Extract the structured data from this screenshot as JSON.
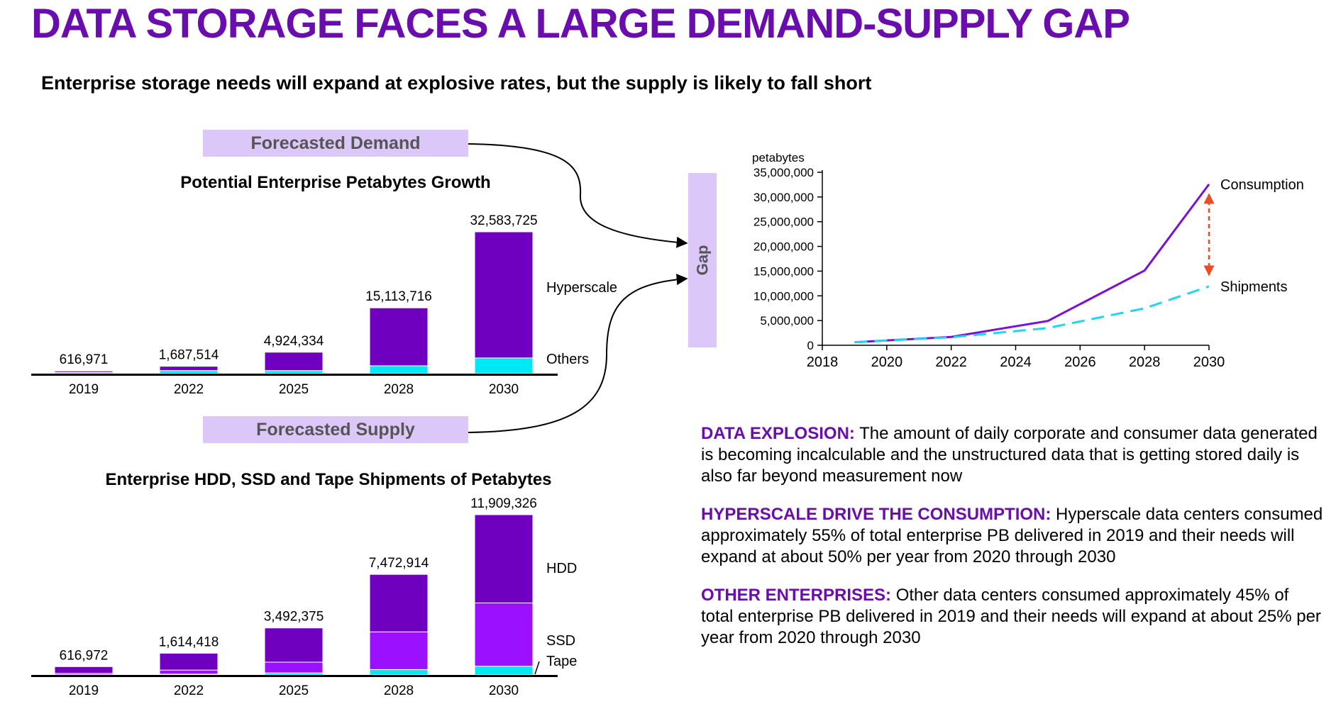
{
  "title": "DATA STORAGE FACES A LARGE DEMAND-SUPPLY GAP",
  "subtitle": "Enterprise storage needs will expand at explosive rates, but the supply is likely to fall short",
  "labels": {
    "forecasted_demand": "Forecasted Demand",
    "forecasted_supply": "Forecasted Supply",
    "gap": "Gap"
  },
  "colors": {
    "accent": "#6a0dad",
    "hyperscale": "#7000c0",
    "others": "#00e8f8",
    "hdd": "#7000c0",
    "ssd": "#9b10ff",
    "tape": "#00e8f8",
    "consumption_line": "#7a10d8",
    "shipments_line": "#21d4f4",
    "gap_arrow": "#f04a24",
    "pill": "#dcc8f8"
  },
  "chart_data": [
    {
      "type": "bar",
      "title": "Potential Enterprise Petabytes Growth",
      "categories": [
        "2019",
        "2022",
        "2025",
        "2028",
        "2030"
      ],
      "totals_labels": [
        "616,971",
        "1,687,514",
        "4,924,334",
        "15,113,716",
        "32,583,725"
      ],
      "totals": [
        616971,
        1687514,
        4924334,
        15113716,
        32583725
      ],
      "series": [
        {
          "name": "Others",
          "values": [
            280000,
            700000,
            700000,
            1800000,
            3600000
          ]
        },
        {
          "name": "Hyperscale",
          "values": [
            336971,
            987514,
            4224334,
            13313716,
            28983725
          ]
        }
      ],
      "stacked": true
    },
    {
      "type": "bar",
      "title": "Enterprise HDD, SSD and Tape Shipments of Petabytes",
      "categories": [
        "2019",
        "2022",
        "2025",
        "2028",
        "2030"
      ],
      "totals_labels": [
        "616,972",
        "1,614,418",
        "3,492,375",
        "7,472,914",
        "11,909,326"
      ],
      "totals": [
        616972,
        1614418,
        3492375,
        7472914,
        11909326
      ],
      "series": [
        {
          "name": "Tape",
          "values": [
            20000,
            60000,
            150000,
            400000,
            650000
          ]
        },
        {
          "name": "SSD",
          "values": [
            100000,
            300000,
            800000,
            2800000,
            4700000
          ]
        },
        {
          "name": "HDD",
          "values": [
            496972,
            1254418,
            2542375,
            4272914,
            6559326
          ]
        }
      ],
      "stacked": true
    },
    {
      "type": "line",
      "ylabel": "petabytes",
      "x": [
        2019,
        2022,
        2025,
        2028,
        2030
      ],
      "xticks": [
        "2018",
        "2020",
        "2022",
        "2024",
        "2026",
        "2028",
        "2030"
      ],
      "xlim": [
        2018,
        2030
      ],
      "yticks": [
        "0",
        "5,000,000",
        "10,000,000",
        "15,000,000",
        "20,000,000",
        "25,000,000",
        "30,000,000",
        "35,000,000"
      ],
      "ylim": [
        0,
        35000000
      ],
      "series": [
        {
          "name": "Consumption",
          "values": [
            616971,
            1687514,
            4924334,
            15113716,
            32583725
          ]
        },
        {
          "name": "Shipments",
          "values": [
            616972,
            1614418,
            3492375,
            7472914,
            11909326
          ]
        }
      ]
    }
  ],
  "notes": [
    {
      "heading": "DATA EXPLOSION:",
      "text": " The amount of daily corporate and consumer data generated is becoming incalculable and the unstructured data that is getting stored daily is also far beyond measurement now"
    },
    {
      "heading": "HYPERSCALE DRIVE THE CONSUMPTION:",
      "text": " Hyperscale data centers consumed approximately 55% of total enterprise PB delivered in 2019 and their needs will expand at about 50% per year from 2020 through 2030"
    },
    {
      "heading": "OTHER ENTERPRISES:",
      "text": " Other data centers consumed approximately 45% of total enterprise PB delivered in 2019 and their needs will expand at about 25% per year from 2020 through 2030"
    }
  ]
}
